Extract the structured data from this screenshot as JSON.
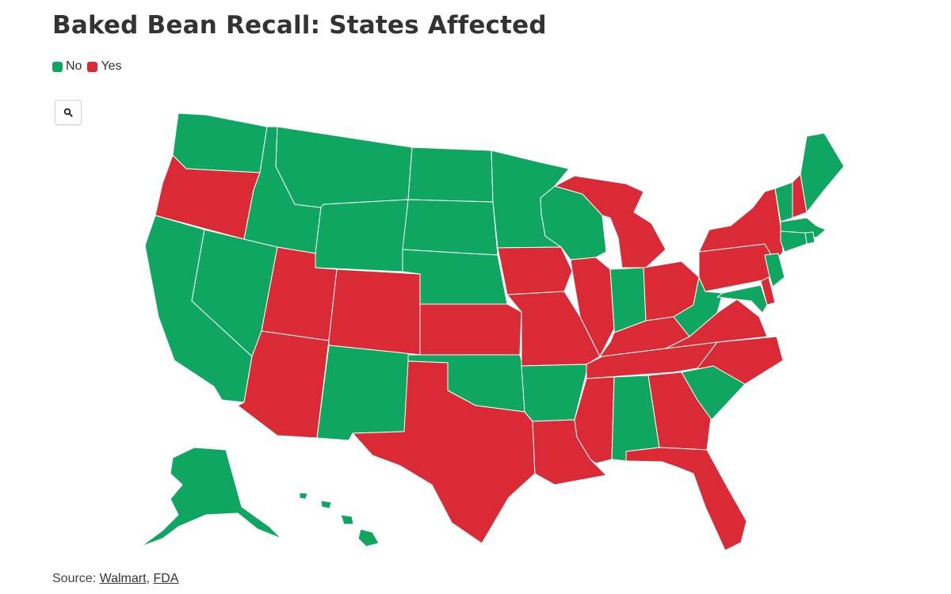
{
  "title": "Baked Bean Recall: States Affected",
  "legend": {
    "items": [
      {
        "label": "No",
        "color": "#0ea660"
      },
      {
        "label": "Yes",
        "color": "#da2a35"
      }
    ]
  },
  "search_icon": "search-icon",
  "source": {
    "prefix": "Source:",
    "links": [
      "Walmart",
      "FDA"
    ],
    "separator": ","
  },
  "states": {
    "WA": "No",
    "OR": "Yes",
    "CA": "No",
    "NV": "No",
    "ID": "No",
    "MT": "No",
    "WY": "No",
    "UT": "Yes",
    "AZ": "Yes",
    "CO": "Yes",
    "NM": "No",
    "ND": "No",
    "SD": "No",
    "NE": "No",
    "KS": "Yes",
    "OK": "No",
    "TX": "Yes",
    "MN": "No",
    "IA": "Yes",
    "MO": "Yes",
    "AR": "No",
    "LA": "Yes",
    "WI": "No",
    "IL": "Yes",
    "MI": "Yes",
    "IN": "No",
    "OH": "Yes",
    "KY": "Yes",
    "TN": "Yes",
    "MS": "Yes",
    "AL": "No",
    "GA": "Yes",
    "FL": "Yes",
    "SC": "No",
    "NC": "Yes",
    "VA": "Yes",
    "WV": "No",
    "PA": "Yes",
    "NY": "Yes",
    "VT": "No",
    "NH": "Yes",
    "ME": "No",
    "MA": "No",
    "RI": "No",
    "CT": "No",
    "NJ": "No",
    "DE": "Yes",
    "MD": "No",
    "AK": "No",
    "HI": "No"
  }
}
